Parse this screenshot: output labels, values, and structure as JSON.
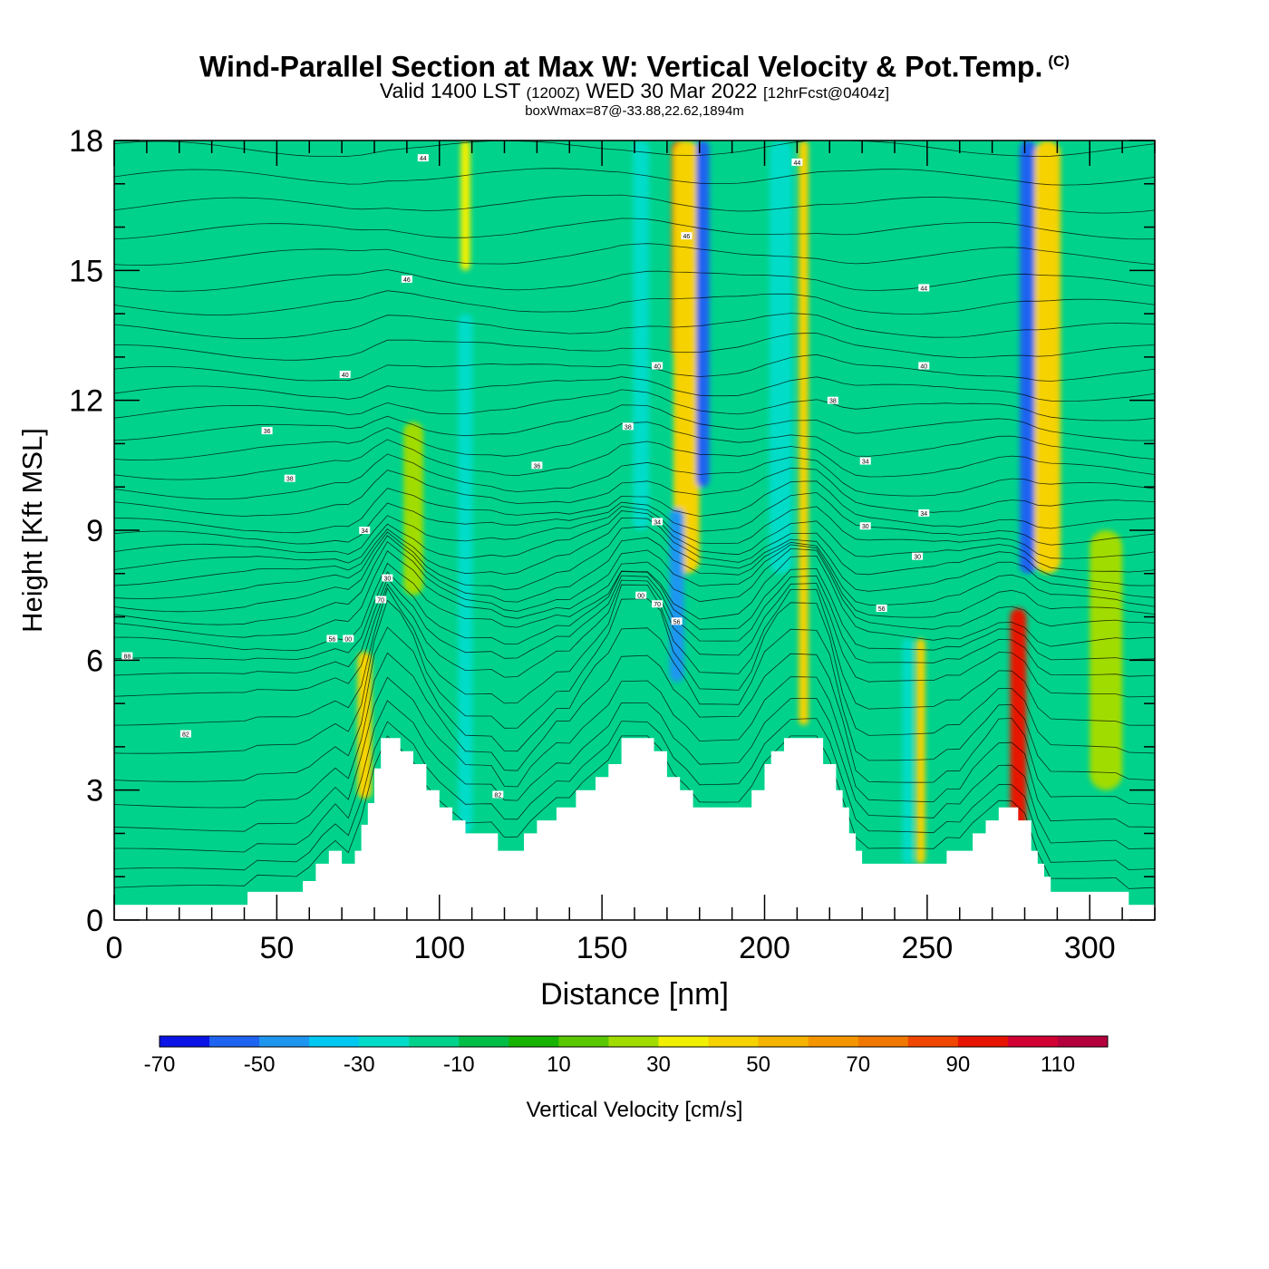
{
  "header": {
    "title": "Wind-Parallel Section at Max W: Vertical Velocity & Pot.Temp.",
    "copyright": "(C)",
    "valid_prefix": "Valid 1400 LST",
    "valid_zulu": "(1200Z)",
    "valid_date": "WED 30 Mar 2022",
    "forecast": "[12hrFcst@0404z]",
    "box_note": "boxWmax=87@-33.88,22.62,1894m"
  },
  "chart_data": {
    "type": "heatmap",
    "title": "Wind-Parallel Section at Max W: Vertical Velocity & Pot.Temp.",
    "xlabel": "Distance [nm]",
    "ylabel": "Height [Kft MSL]",
    "xlim": [
      0,
      320
    ],
    "ylim": [
      0,
      18
    ],
    "x_ticks": [
      "0",
      "50",
      "100",
      "150",
      "200",
      "250",
      "300"
    ],
    "y_ticks": [
      "0",
      "3",
      "6",
      "9",
      "12",
      "15",
      "18"
    ],
    "colorbar": {
      "label": "Vertical Velocity [cm/s]",
      "tick_labels": [
        "-70",
        "-50",
        "-30",
        "-10",
        "10",
        "30",
        "50",
        "70",
        "90",
        "110"
      ],
      "levels": [
        -70,
        -60,
        -50,
        -40,
        -30,
        -20,
        -10,
        0,
        10,
        20,
        30,
        40,
        50,
        60,
        70,
        80,
        90,
        100,
        110,
        120
      ],
      "colors": [
        "#0a14e6",
        "#1f64f0",
        "#1e96f0",
        "#00c8f0",
        "#00dcc8",
        "#00d28c",
        "#00be46",
        "#16b400",
        "#5ac800",
        "#a0dc00",
        "#f0f000",
        "#f5d200",
        "#f5b400",
        "#f59600",
        "#f07800",
        "#f04600",
        "#e61400",
        "#d20032",
        "#b4003c"
      ]
    },
    "background_level": 5,
    "terrain": [
      [
        0,
        0.35
      ],
      [
        40,
        0.35
      ],
      [
        41,
        0.65
      ],
      [
        54,
        0.65
      ],
      [
        58,
        0.9
      ],
      [
        62,
        1.3
      ],
      [
        66,
        1.6
      ],
      [
        69,
        1.6
      ],
      [
        70,
        1.3
      ],
      [
        72,
        1.3
      ],
      [
        74,
        1.6
      ],
      [
        76,
        2.2
      ],
      [
        78,
        2.7
      ],
      [
        80,
        3.5
      ],
      [
        82,
        4.2
      ],
      [
        86,
        4.2
      ],
      [
        88,
        3.9
      ],
      [
        92,
        3.6
      ],
      [
        96,
        3.0
      ],
      [
        100,
        2.6
      ],
      [
        104,
        2.3
      ],
      [
        108,
        2.0
      ],
      [
        114,
        2.0
      ],
      [
        118,
        1.6
      ],
      [
        122,
        1.6
      ],
      [
        126,
        2.0
      ],
      [
        130,
        2.3
      ],
      [
        136,
        2.6
      ],
      [
        142,
        3.0
      ],
      [
        148,
        3.3
      ],
      [
        152,
        3.6
      ],
      [
        156,
        4.2
      ],
      [
        162,
        4.2
      ],
      [
        166,
        3.9
      ],
      [
        170,
        3.3
      ],
      [
        174,
        3.0
      ],
      [
        178,
        2.6
      ],
      [
        194,
        2.6
      ],
      [
        196,
        3.0
      ],
      [
        200,
        3.6
      ],
      [
        202,
        3.9
      ],
      [
        206,
        4.2
      ],
      [
        214,
        4.2
      ],
      [
        218,
        3.6
      ],
      [
        222,
        3.0
      ],
      [
        224,
        2.6
      ],
      [
        226,
        2.0
      ],
      [
        228,
        1.6
      ],
      [
        230,
        1.3
      ],
      [
        254,
        1.3
      ],
      [
        256,
        1.6
      ],
      [
        262,
        1.6
      ],
      [
        264,
        2.0
      ],
      [
        268,
        2.3
      ],
      [
        272,
        2.6
      ],
      [
        276,
        2.6
      ],
      [
        278,
        2.3
      ],
      [
        282,
        1.6
      ],
      [
        284,
        1.3
      ],
      [
        286,
        1.0
      ],
      [
        288,
        0.65
      ],
      [
        290,
        0.65
      ],
      [
        310,
        0.65
      ],
      [
        312,
        0.35
      ],
      [
        320,
        0.35
      ]
    ],
    "w_features": [
      {
        "x": 174,
        "y0": 13.0,
        "y1": 18.0,
        "hw": 2.6,
        "level": 15
      },
      {
        "x": 176,
        "y0": 8.0,
        "y1": 18.0,
        "hw": 4.0,
        "level": 11
      },
      {
        "x": 181,
        "y0": 10.0,
        "y1": 18.0,
        "hw": 2.0,
        "level": 1
      },
      {
        "x": 173,
        "y0": 5.5,
        "y1": 9.5,
        "hw": 2.2,
        "level": 2
      },
      {
        "x": 212,
        "y0": 4.5,
        "y1": 18.0,
        "hw": 1.5,
        "level": 11
      },
      {
        "x": 205,
        "y0": 8.0,
        "y1": 18.0,
        "hw": 3.5,
        "level": 4
      },
      {
        "x": 281,
        "y0": 8.0,
        "y1": 18.0,
        "hw": 2.5,
        "level": 1
      },
      {
        "x": 287,
        "y0": 8.0,
        "y1": 18.0,
        "hw": 4.0,
        "level": 11
      },
      {
        "x": 278,
        "y0": 1.6,
        "y1": 7.2,
        "hw": 2.5,
        "level": 16
      },
      {
        "x": 248,
        "y0": 1.3,
        "y1": 6.5,
        "hw": 1.4,
        "level": 11
      },
      {
        "x": 244,
        "y0": 1.3,
        "y1": 6.5,
        "hw": 1.6,
        "level": 4
      },
      {
        "x": 77,
        "y0": 2.8,
        "y1": 6.2,
        "hw": 2.2,
        "level": 11
      },
      {
        "x": 108,
        "y0": 2.0,
        "y1": 14.0,
        "hw": 2.2,
        "level": 4
      },
      {
        "x": 108,
        "y0": 15.0,
        "y1": 18.0,
        "hw": 1.5,
        "level": 10
      },
      {
        "x": 92,
        "y0": 7.5,
        "y1": 11.5,
        "hw": 3.0,
        "level": 9
      },
      {
        "x": 305,
        "y0": 3.0,
        "y1": 9.0,
        "hw": 5.0,
        "level": 9
      },
      {
        "x": 162,
        "y0": 9.0,
        "y1": 18.0,
        "hw": 2.5,
        "level": 4
      }
    ],
    "isentropes": [
      0.75,
      1.15,
      1.6,
      2.1,
      2.65,
      3.25,
      3.9,
      4.55,
      5.2,
      5.65,
      6.0,
      6.35,
      6.7,
      7.0,
      7.3,
      7.6,
      7.9,
      8.2,
      8.5,
      8.8,
      9.1,
      9.5,
      9.9,
      10.35,
      10.8,
      11.25,
      11.7,
      12.15,
      12.6,
      13.1,
      13.6,
      14.15,
      14.7,
      15.3,
      15.9,
      16.5,
      17.15,
      17.8
    ],
    "contour_labels": [
      {
        "x": 4,
        "y": 6.1,
        "text": "88"
      },
      {
        "x": 22,
        "y": 4.3,
        "text": "82"
      },
      {
        "x": 47,
        "y": 11.3,
        "text": "36"
      },
      {
        "x": 54,
        "y": 10.2,
        "text": "38"
      },
      {
        "x": 71,
        "y": 12.6,
        "text": "40"
      },
      {
        "x": 77,
        "y": 9.0,
        "text": "34"
      },
      {
        "x": 84,
        "y": 7.9,
        "text": "30"
      },
      {
        "x": 82,
        "y": 7.4,
        "text": "70"
      },
      {
        "x": 67,
        "y": 6.5,
        "text": "56"
      },
      {
        "x": 72,
        "y": 6.5,
        "text": "00"
      },
      {
        "x": 90,
        "y": 14.8,
        "text": "46"
      },
      {
        "x": 95,
        "y": 17.6,
        "text": "44"
      },
      {
        "x": 130,
        "y": 10.5,
        "text": "36"
      },
      {
        "x": 118,
        "y": 2.9,
        "text": "82"
      },
      {
        "x": 158,
        "y": 11.4,
        "text": "38"
      },
      {
        "x": 167,
        "y": 12.8,
        "text": "40"
      },
      {
        "x": 167,
        "y": 9.2,
        "text": "34"
      },
      {
        "x": 162,
        "y": 7.5,
        "text": "00"
      },
      {
        "x": 167,
        "y": 7.3,
        "text": "70"
      },
      {
        "x": 173,
        "y": 6.9,
        "text": "56"
      },
      {
        "x": 176,
        "y": 15.8,
        "text": "46"
      },
      {
        "x": 210,
        "y": 17.5,
        "text": "44"
      },
      {
        "x": 221,
        "y": 12.0,
        "text": "38"
      },
      {
        "x": 231,
        "y": 10.6,
        "text": "34"
      },
      {
        "x": 231,
        "y": 9.1,
        "text": "30"
      },
      {
        "x": 236,
        "y": 7.2,
        "text": "56"
      },
      {
        "x": 249,
        "y": 14.6,
        "text": "44"
      },
      {
        "x": 249,
        "y": 12.8,
        "text": "40"
      },
      {
        "x": 249,
        "y": 9.4,
        "text": "34"
      },
      {
        "x": 247,
        "y": 8.4,
        "text": "30"
      }
    ]
  }
}
